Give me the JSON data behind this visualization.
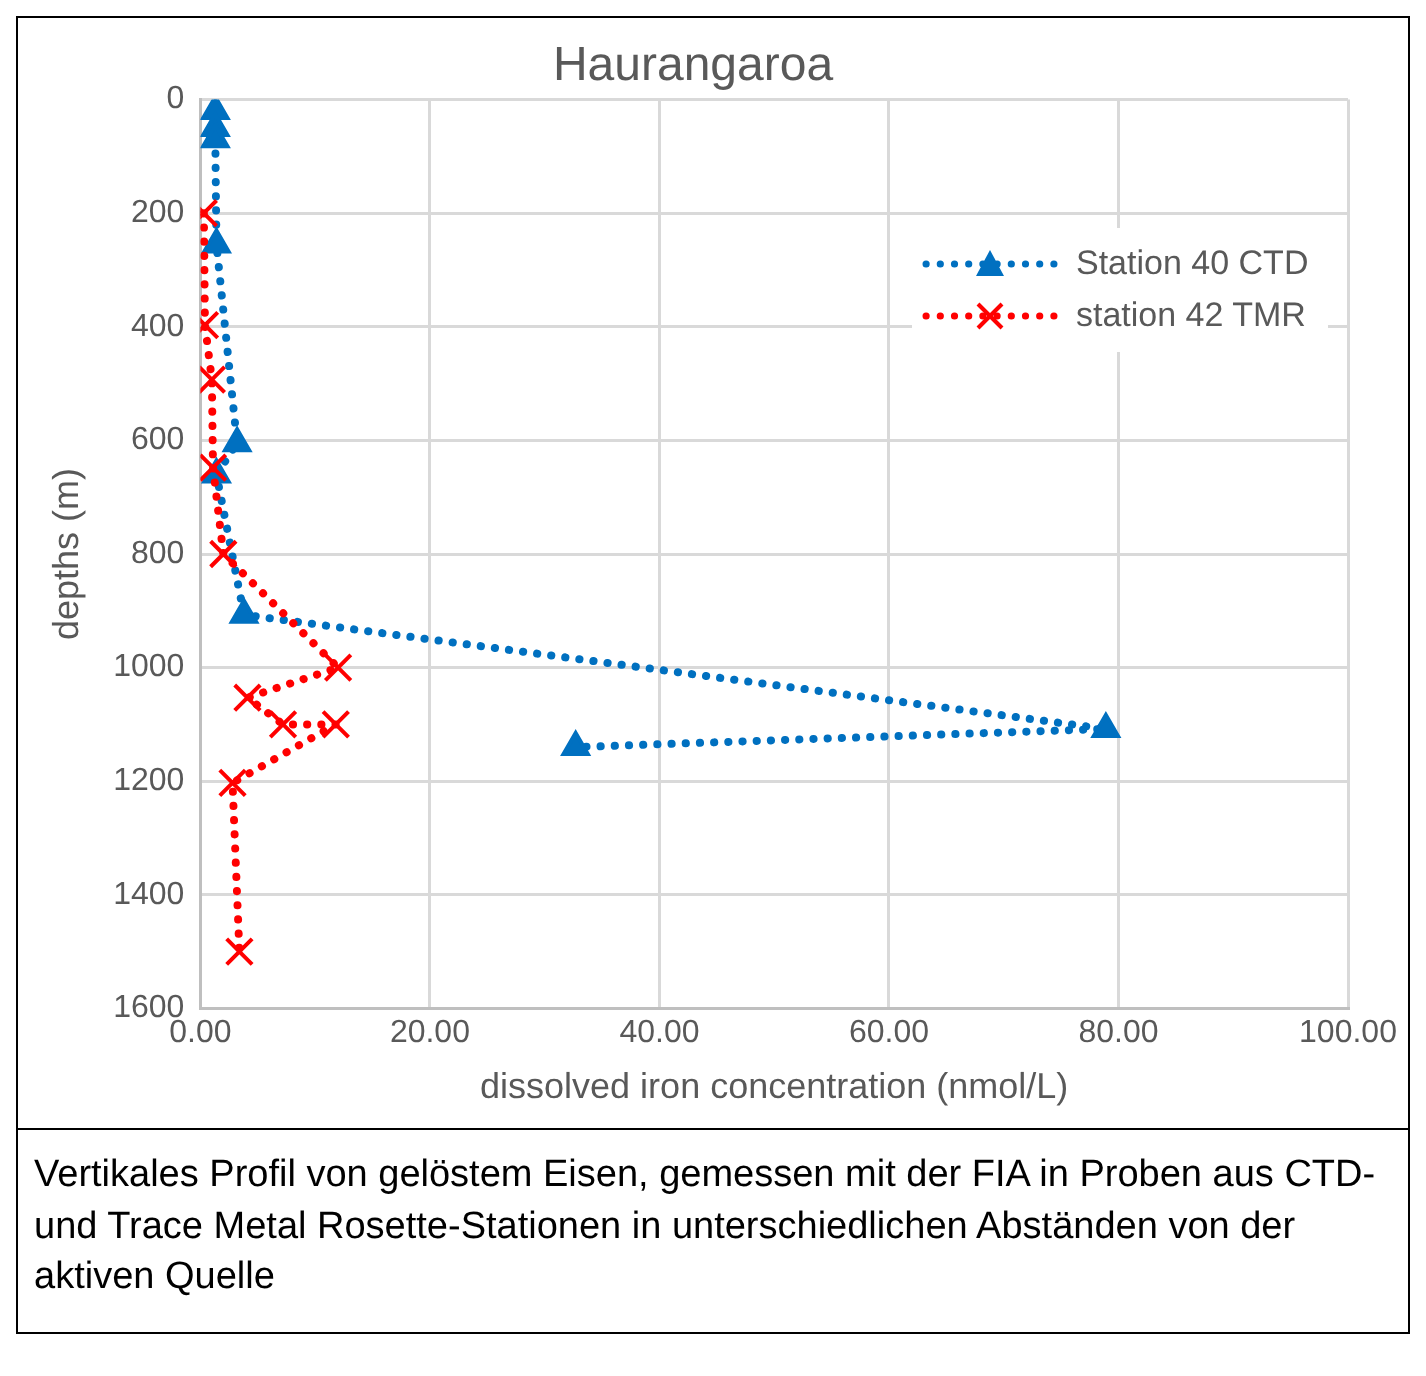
{
  "chart_data": {
    "type": "line",
    "title": "Haurangaroa",
    "xlabel": "dissolved iron concentration (nmol/L)",
    "ylabel": "depths (m)",
    "xlim": [
      0,
      100
    ],
    "xticks": [
      {
        "value": 0,
        "label": "0.00"
      },
      {
        "value": 20,
        "label": "20.00"
      },
      {
        "value": 40,
        "label": "40.00"
      },
      {
        "value": 60,
        "label": "60.00"
      },
      {
        "value": 80,
        "label": "80.00"
      },
      {
        "value": 100,
        "label": "100.00"
      }
    ],
    "ylim": [
      1600,
      0
    ],
    "yticks": [
      0,
      200,
      400,
      600,
      800,
      1000,
      1200,
      1400,
      1600
    ],
    "grid": true,
    "legend": "top right",
    "line_style": "dotted",
    "series": [
      {
        "name": "Station 40 CTD",
        "color": "#0070c0",
        "marker": "triangle",
        "x": [
          1.3,
          1.3,
          1.3,
          1.4,
          3.2,
          1.4,
          3.8,
          78.9,
          32.7
        ],
        "values": [
          20,
          50,
          70,
          255,
          605,
          660,
          907,
          1108,
          1140
        ]
      },
      {
        "name": "station 42 TMR",
        "color": "#ff0000",
        "marker": "cross",
        "x": [
          0.3,
          0.4,
          1.0,
          1.1,
          2.0,
          12.0,
          4.1,
          7.2,
          11.8,
          2.8,
          3.4
        ],
        "values": [
          200,
          397,
          493,
          648,
          800,
          1000,
          1053,
          1100,
          1100,
          1203,
          1500
        ]
      }
    ],
    "annotations": [
      "Vertikales Profil von gelöstem Eisen, gemessen mit der FIA in Proben aus CTD- und Trace Metal Rosette-Stationen in unterschiedlichen Abständen von der aktiven Quelle"
    ]
  }
}
